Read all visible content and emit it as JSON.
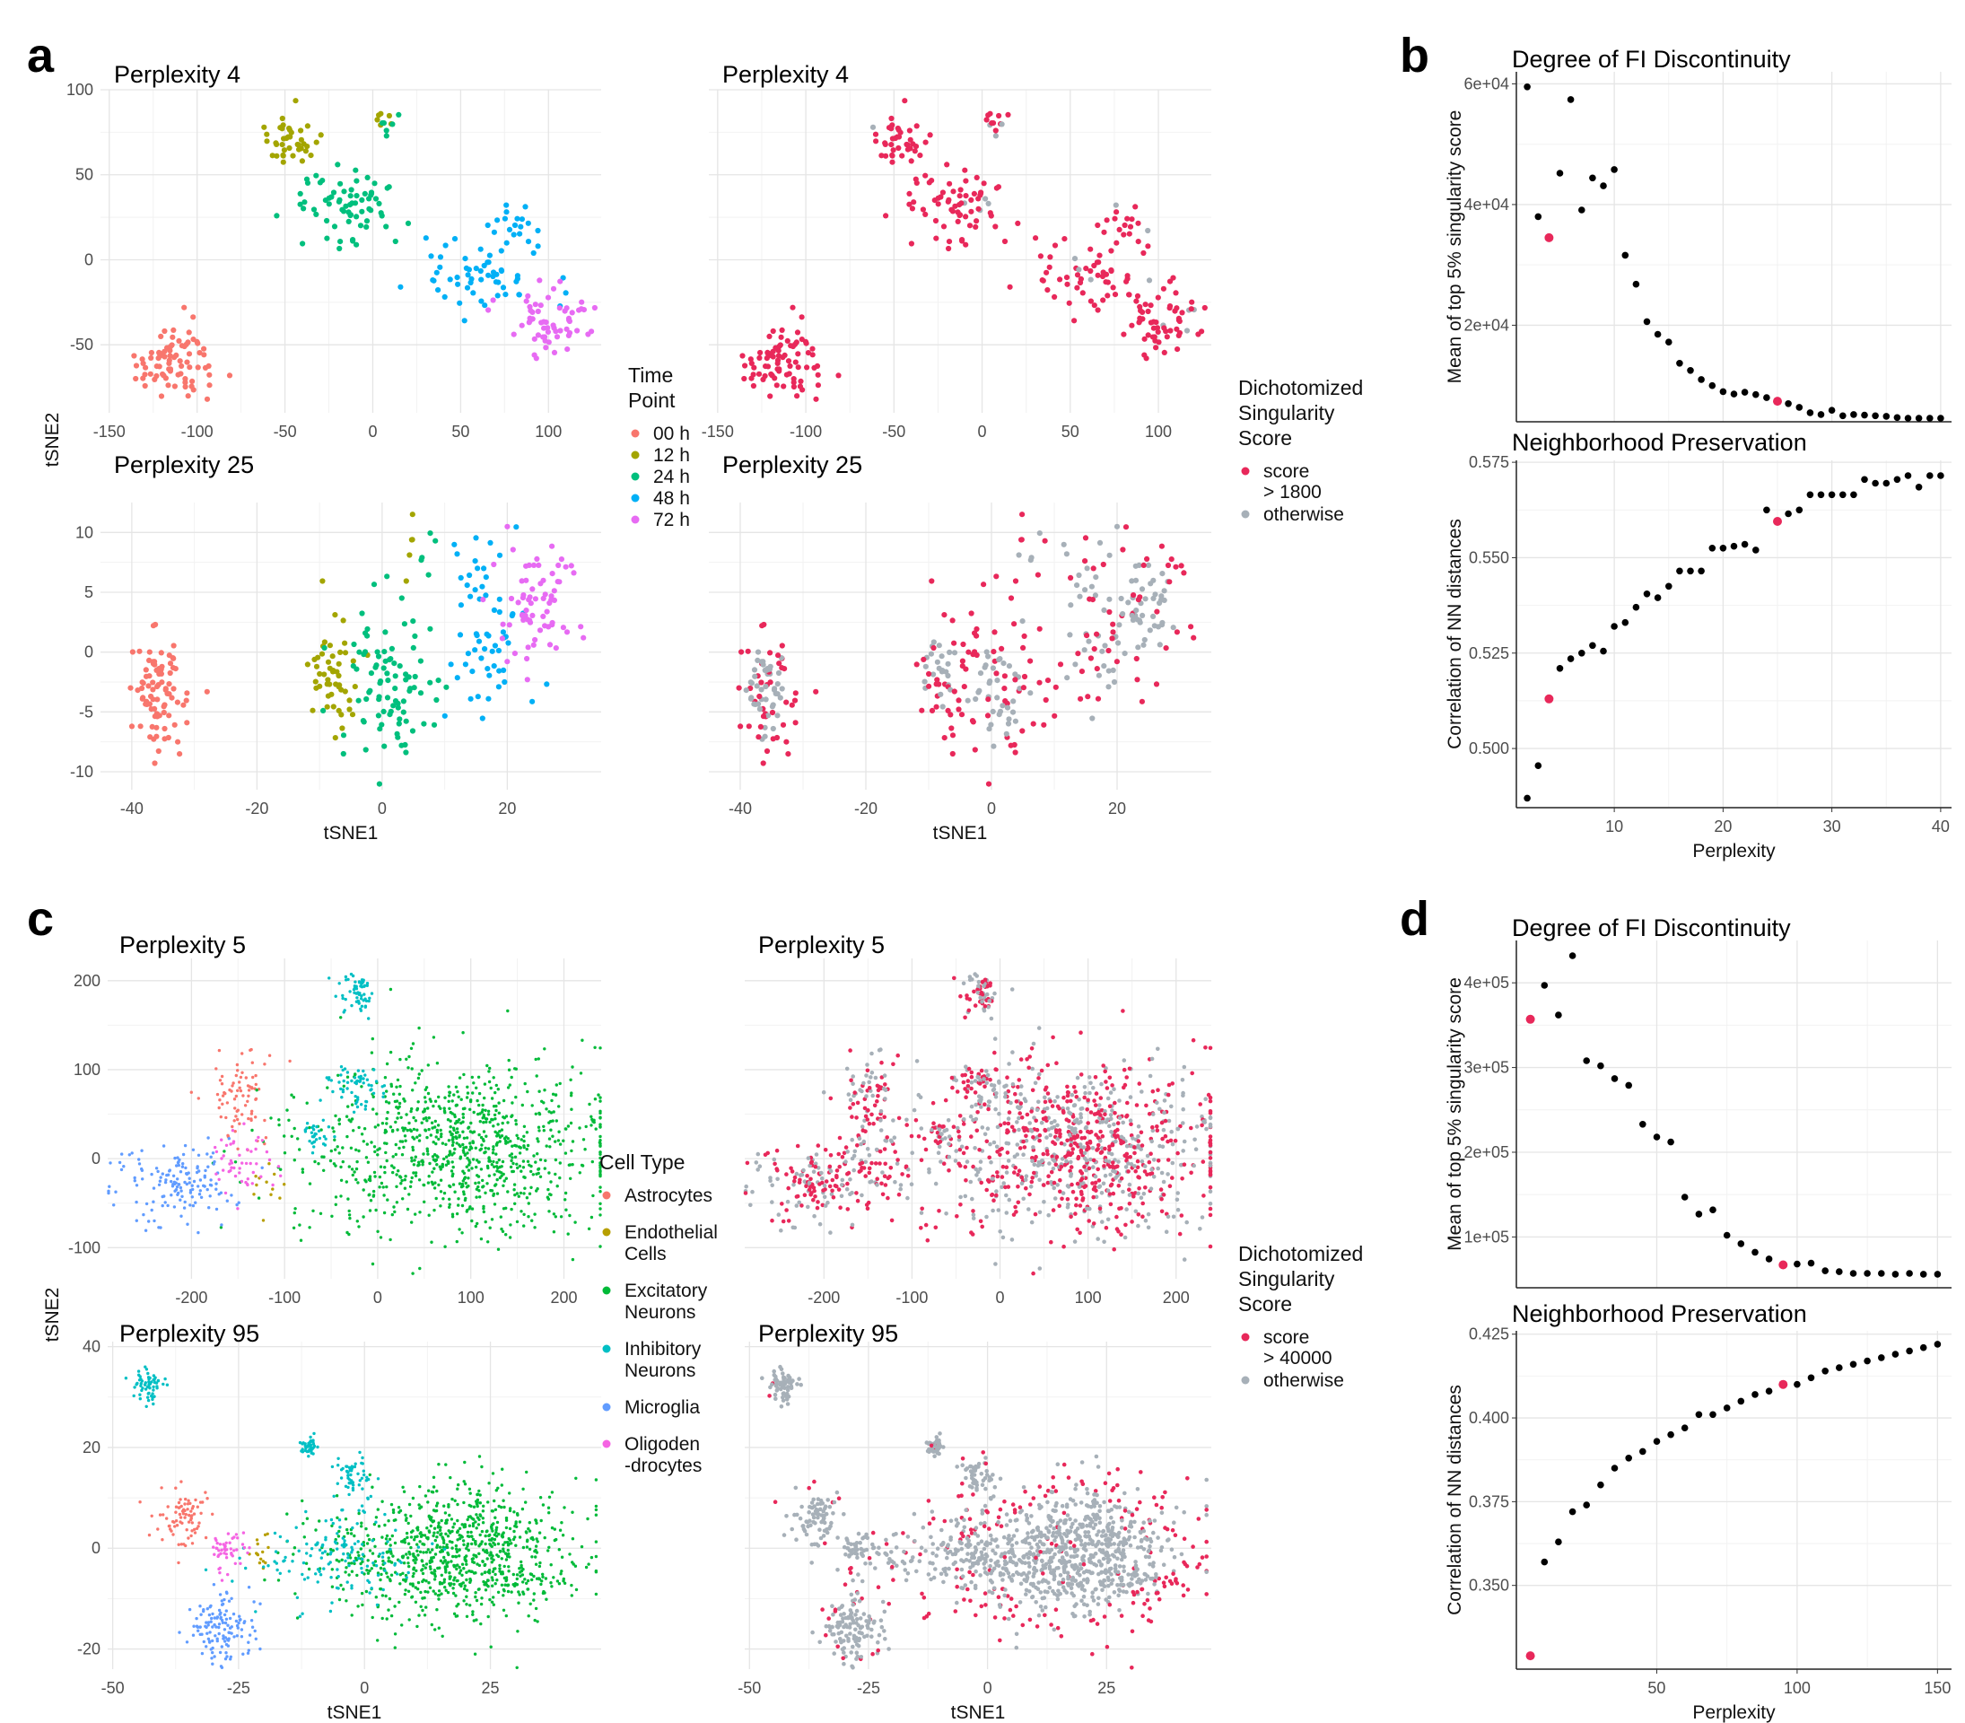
{
  "panel_letters": {
    "a": "a",
    "b": "b",
    "c": "c",
    "d": "d"
  },
  "legends": {
    "time_point": {
      "title": [
        "Time",
        "Point"
      ],
      "items": [
        {
          "label": "00 h",
          "color": "#F8766D"
        },
        {
          "label": "12 h",
          "color": "#A3A500"
        },
        {
          "label": "24 h",
          "color": "#00BF7D"
        },
        {
          "label": "48 h",
          "color": "#00B0F6"
        },
        {
          "label": "72 h",
          "color": "#E76BF3"
        }
      ]
    },
    "dichot_a": {
      "title": [
        "Dichotomized",
        "Singularity",
        "Score"
      ],
      "items": [
        {
          "label": [
            "score",
            "> 1800"
          ],
          "color": "#E8285A"
        },
        {
          "label": [
            "otherwise"
          ],
          "color": "#A7B0B8"
        }
      ]
    },
    "cell_type": {
      "title": [
        "Cell Type"
      ],
      "items": [
        {
          "label": [
            "Astrocytes"
          ],
          "color": "#F8766D"
        },
        {
          "label": [
            "Endothelial",
            "Cells"
          ],
          "color": "#B79F00"
        },
        {
          "label": [
            "Excitatory",
            "Neurons"
          ],
          "color": "#00BA38"
        },
        {
          "label": [
            "Inhibitory",
            "Neurons"
          ],
          "color": "#00BFC4"
        },
        {
          "label": [
            "Microglia"
          ],
          "color": "#619CFF"
        },
        {
          "label": [
            "Oligoden",
            "-drocytes"
          ],
          "color": "#F564E3"
        }
      ]
    },
    "dichot_c": {
      "title": [
        "Dichotomized",
        "Singularity",
        "Score"
      ],
      "items": [
        {
          "label": [
            "score",
            "> 40000"
          ],
          "color": "#E8285A"
        },
        {
          "label": [
            "otherwise"
          ],
          "color": "#A7B0B8"
        }
      ]
    }
  },
  "axis_labels": {
    "tsne1": "tSNE1",
    "tsne2": "tSNE2",
    "perplexity": "Perplexity"
  },
  "chart_data": [
    {
      "id": "a1",
      "type": "scatter",
      "title": "Perplexity 4",
      "color_by": "Time Point",
      "xticks": [
        -150,
        -100,
        -50,
        0,
        50,
        100
      ],
      "yticks": [
        -50,
        0,
        50,
        100
      ],
      "xlim": [
        -155,
        130
      ],
      "ylim": [
        -90,
        100
      ],
      "clusters": [
        {
          "n": 80,
          "cx": -112,
          "cy": -60,
          "sx": 11,
          "sy": 11,
          "color": "#F8766D",
          "flag": 1.0
        },
        {
          "n": 40,
          "cx": -48,
          "cy": 72,
          "sx": 8,
          "sy": 9,
          "color": "#A3A500",
          "flag": 0.95
        },
        {
          "n": 6,
          "cx": 7,
          "cy": 82,
          "sx": 4,
          "sy": 4,
          "color": "#A3A500",
          "flag": 0.6
        },
        {
          "n": 6,
          "cx": 9,
          "cy": 81,
          "sx": 4,
          "sy": 4,
          "color": "#00BF7D",
          "flag": 0.6
        },
        {
          "n": 70,
          "cx": -15,
          "cy": 35,
          "sx": 16,
          "sy": 11,
          "color": "#00BF7D",
          "flag": 0.97
        },
        {
          "n": 60,
          "cx": 65,
          "cy": -8,
          "sx": 17,
          "sy": 12,
          "color": "#00B0F6",
          "flag": 0.95
        },
        {
          "n": 15,
          "cx": 85,
          "cy": 20,
          "sx": 6,
          "sy": 7,
          "color": "#00B0F6",
          "flag": 0.9
        },
        {
          "n": 60,
          "cx": 103,
          "cy": -37,
          "sx": 12,
          "sy": 9,
          "color": "#E76BF3",
          "flag": 0.95
        }
      ]
    },
    {
      "id": "a2",
      "type": "scatter",
      "title": "Perplexity 4",
      "color_by": "Dichotomized Singularity Score",
      "xticks": [
        -150,
        -100,
        -50,
        0,
        50,
        100
      ],
      "yticks": [],
      "xlim": [
        -155,
        130
      ],
      "ylim": [
        -90,
        100
      ]
    },
    {
      "id": "a3",
      "type": "scatter",
      "title": "Perplexity 25",
      "color_by": "Time Point",
      "xticks": [
        -40,
        -20,
        0,
        20
      ],
      "yticks": [
        -10,
        -5,
        0,
        5,
        10
      ],
      "xlim": [
        -45,
        35
      ],
      "ylim": [
        -11.5,
        12.5
      ],
      "clusters": [
        {
          "n": 90,
          "cx": -36,
          "cy": -3,
          "sx": 2.3,
          "sy": 2.6,
          "color": "#F8766D",
          "flag": 0.25
        },
        {
          "n": 50,
          "cx": -8,
          "cy": -2,
          "sx": 2,
          "sy": 2.5,
          "color": "#A3A500",
          "flag": 0.2
        },
        {
          "n": 5,
          "cx": 5.5,
          "cy": 8.5,
          "sx": 1,
          "sy": 1,
          "color": "#A3A500",
          "flag": 0.5
        },
        {
          "n": 5,
          "cx": 7,
          "cy": 9,
          "sx": 1,
          "sy": 1,
          "color": "#00BF7D",
          "flag": 0.5
        },
        {
          "n": 90,
          "cx": 1,
          "cy": -3,
          "sx": 3.5,
          "sy": 3,
          "color": "#00BF7D",
          "flag": 0.3
        },
        {
          "n": 60,
          "cx": 17,
          "cy": 2,
          "sx": 3,
          "sy": 4.5,
          "color": "#00B0F6",
          "flag": 0.35
        },
        {
          "n": 70,
          "cx": 25,
          "cy": 4,
          "sx": 3.5,
          "sy": 3,
          "color": "#E76BF3",
          "flag": 0.2
        }
      ]
    },
    {
      "id": "a4",
      "type": "scatter",
      "title": "Perplexity 25",
      "color_by": "Dichotomized Singularity Score",
      "xticks": [
        -40,
        -20,
        0,
        20
      ],
      "yticks": [],
      "xlim": [
        -45,
        35
      ],
      "ylim": [
        -11.5,
        12.5
      ]
    },
    {
      "id": "b1",
      "type": "scatter",
      "title": "Degree of FI Discontinuity",
      "xlabel": "",
      "ylabel": "Mean of top 5% singularity score",
      "xlim": [
        1,
        41
      ],
      "ylim": [
        4000,
        62000
      ],
      "yticks": [
        20000,
        40000,
        60000
      ],
      "ytick_labels": [
        "2e+04",
        "4e+04",
        "6e+04"
      ],
      "xgrid": [
        10,
        20,
        30,
        40
      ],
      "x": [
        2,
        3,
        4,
        5,
        6,
        7,
        8,
        9,
        10,
        11,
        12,
        13,
        14,
        15,
        16,
        17,
        18,
        19,
        20,
        21,
        22,
        23,
        24,
        25,
        26,
        27,
        28,
        29,
        30,
        31,
        32,
        33,
        34,
        35,
        36,
        37,
        38,
        39,
        40
      ],
      "y": [
        59500,
        38000,
        34500,
        45200,
        57400,
        39100,
        44400,
        43100,
        45800,
        31600,
        26800,
        20600,
        18500,
        17200,
        13700,
        12500,
        11000,
        10000,
        9000,
        8600,
        8900,
        8500,
        8000,
        7400,
        7000,
        6400,
        5500,
        5200,
        5900,
        5000,
        5200,
        5100,
        5000,
        4900,
        4700,
        4600,
        4600,
        4600,
        4600
      ],
      "highlight_x": [
        4,
        25
      ]
    },
    {
      "id": "b2",
      "type": "scatter",
      "title": "Neighborhood Preservation",
      "xlabel": "Perplexity",
      "ylabel": "Correlation of NN distances",
      "xlim": [
        1,
        41
      ],
      "ylim": [
        0.4845,
        0.5755
      ],
      "yticks": [
        0.5,
        0.525,
        0.55,
        0.575
      ],
      "ytick_labels": [
        "0.500",
        "0.525",
        "0.550",
        "0.575"
      ],
      "xticks": [
        10,
        20,
        30,
        40
      ],
      "x": [
        2,
        3,
        4,
        5,
        6,
        7,
        8,
        9,
        10,
        11,
        12,
        13,
        14,
        15,
        16,
        17,
        18,
        19,
        20,
        21,
        22,
        23,
        24,
        25,
        26,
        27,
        28,
        29,
        30,
        31,
        32,
        33,
        34,
        35,
        36,
        37,
        38,
        39,
        40
      ],
      "y": [
        0.487,
        0.4955,
        0.513,
        0.521,
        0.5235,
        0.525,
        0.527,
        0.5255,
        0.532,
        0.533,
        0.537,
        0.5405,
        0.5395,
        0.5425,
        0.5465,
        0.5465,
        0.5465,
        0.5525,
        0.5525,
        0.553,
        0.5535,
        0.552,
        0.5625,
        0.5595,
        0.5615,
        0.5625,
        0.5665,
        0.5665,
        0.5665,
        0.5665,
        0.5665,
        0.5705,
        0.5695,
        0.5695,
        0.5705,
        0.5715,
        0.5685,
        0.5715,
        0.5715
      ],
      "highlight_x": [
        4,
        25
      ]
    },
    {
      "id": "c1",
      "type": "scatter",
      "title": "Perplexity 5",
      "color_by": "Cell Type",
      "xticks": [
        -200,
        -100,
        0,
        100,
        200
      ],
      "yticks": [
        -100,
        0,
        100,
        200
      ],
      "xlim": [
        -290,
        240
      ],
      "ylim": [
        -135,
        225
      ],
      "clusters": [
        {
          "n": 80,
          "cx": -150,
          "cy": 70,
          "sx": 18,
          "sy": 28,
          "color": "#F8766D",
          "flag": 0.6
        },
        {
          "n": 12,
          "cx": -115,
          "cy": -40,
          "sx": 12,
          "sy": 25,
          "color": "#B79F00",
          "flag": 0.7
        },
        {
          "n": 900,
          "cx": 90,
          "cy": 10,
          "sx": 85,
          "sy": 48,
          "color": "#00BA38",
          "flag": 0.5
        },
        {
          "n": 40,
          "cx": 0,
          "cy": 40,
          "sx": 110,
          "sy": 40,
          "color": "#00BA38",
          "flag": 0.5
        },
        {
          "n": 60,
          "cx": -20,
          "cy": 188,
          "sx": 12,
          "sy": 12,
          "color": "#00BFC4",
          "flag": 0.5
        },
        {
          "n": 60,
          "cx": -25,
          "cy": 80,
          "sx": 15,
          "sy": 12,
          "color": "#00BFC4",
          "flag": 0.5
        },
        {
          "n": 30,
          "cx": -65,
          "cy": 25,
          "sx": 8,
          "sy": 8,
          "color": "#00BFC4",
          "flag": 0.5
        },
        {
          "n": 150,
          "cx": -210,
          "cy": -30,
          "sx": 30,
          "sy": 22,
          "color": "#619CFF",
          "flag": 0.5
        },
        {
          "n": 50,
          "cx": -145,
          "cy": -10,
          "sx": 18,
          "sy": 20,
          "color": "#F564E3",
          "flag": 0.5
        }
      ]
    },
    {
      "id": "c2",
      "type": "scatter",
      "title": "Perplexity 5",
      "color_by": "Dichotomized Singularity Score",
      "xticks": [
        -200,
        -100,
        0,
        100,
        200
      ],
      "yticks": [],
      "xlim": [
        -290,
        240
      ],
      "ylim": [
        -135,
        225
      ]
    },
    {
      "id": "c3",
      "type": "scatter",
      "title": "Perplexity 95",
      "color_by": "Cell Type",
      "xticks": [
        -50,
        -25,
        0,
        25
      ],
      "yticks": [
        -20,
        0,
        20,
        40
      ],
      "xlim": [
        -51,
        47
      ],
      "ylim": [
        -24,
        41
      ],
      "clusters": [
        {
          "n": 80,
          "cx": -36,
          "cy": 6,
          "sx": 2.5,
          "sy": 3,
          "color": "#F8766D",
          "flag": 0.06
        },
        {
          "n": 15,
          "cx": -21,
          "cy": -1,
          "sx": 1.3,
          "sy": 2,
          "color": "#B79F00",
          "flag": 0.05
        },
        {
          "n": 900,
          "cx": 18,
          "cy": -1,
          "sx": 12,
          "sy": 6.5,
          "color": "#00BA38",
          "flag": 0.12
        },
        {
          "n": 140,
          "cx": -5,
          "cy": -1,
          "sx": 9,
          "sy": 4.5,
          "color": "#00BFC4",
          "flag": 0.05
        },
        {
          "n": 60,
          "cx": -43,
          "cy": 32,
          "sx": 1.6,
          "sy": 1.6,
          "color": "#00BFC4",
          "flag": 0.05
        },
        {
          "n": 40,
          "cx": -11,
          "cy": 20,
          "sx": 1,
          "sy": 1.2,
          "color": "#00BFC4",
          "flag": 0.05
        },
        {
          "n": 50,
          "cx": -2,
          "cy": 14,
          "sx": 2,
          "sy": 2,
          "color": "#00BFC4",
          "flag": 0.08
        },
        {
          "n": 130,
          "cx": -28,
          "cy": -16,
          "sx": 3,
          "sy": 3.2,
          "color": "#619CFF",
          "flag": 0.05
        },
        {
          "n": 50,
          "cx": -27,
          "cy": 0,
          "sx": 2.2,
          "sy": 2,
          "color": "#F564E3",
          "flag": 0.05
        }
      ]
    },
    {
      "id": "c4",
      "type": "scatter",
      "title": "Perplexity 95",
      "color_by": "Dichotomized Singularity Score",
      "xticks": [
        -50,
        -25,
        0,
        25
      ],
      "yticks": [],
      "xlim": [
        -51,
        47
      ],
      "ylim": [
        -24,
        41
      ]
    },
    {
      "id": "d1",
      "type": "scatter",
      "title": "Degree of FI Discontinuity",
      "xlabel": "",
      "ylabel": "Mean of top 5% singularity score",
      "xlim": [
        0,
        155
      ],
      "ylim": [
        40000,
        450000
      ],
      "yticks": [
        100000,
        200000,
        300000,
        400000
      ],
      "ytick_labels": [
        "1e+05",
        "2e+05",
        "3e+05",
        "4e+05"
      ],
      "xgrid": [
        50,
        100,
        150
      ],
      "x": [
        5,
        10,
        15,
        20,
        25,
        30,
        35,
        40,
        45,
        50,
        55,
        60,
        65,
        70,
        75,
        80,
        85,
        90,
        95,
        100,
        105,
        110,
        115,
        120,
        125,
        130,
        135,
        140,
        145,
        150
      ],
      "y": [
        357000,
        397000,
        362000,
        432000,
        308000,
        302000,
        287000,
        279000,
        233000,
        218000,
        212000,
        147000,
        127000,
        132000,
        102000,
        92000,
        82000,
        74000,
        67000,
        68000,
        69000,
        60000,
        59000,
        57000,
        57000,
        57000,
        56000,
        57000,
        56000,
        56000
      ],
      "highlight_x": [
        5,
        95
      ]
    },
    {
      "id": "d2",
      "type": "scatter",
      "title": "Neighborhood Preservation",
      "xlabel": "Perplexity",
      "ylabel": "Correlation of NN distances",
      "xlim": [
        0,
        155
      ],
      "ylim": [
        0.325,
        0.426
      ],
      "yticks": [
        0.35,
        0.375,
        0.4,
        0.425
      ],
      "ytick_labels": [
        "0.350",
        "0.375",
        "0.400",
        "0.425"
      ],
      "xticks": [
        50,
        100,
        150
      ],
      "x": [
        5,
        10,
        15,
        20,
        25,
        30,
        35,
        40,
        45,
        50,
        55,
        60,
        65,
        70,
        75,
        80,
        85,
        90,
        95,
        100,
        105,
        110,
        115,
        120,
        125,
        130,
        135,
        140,
        145,
        150
      ],
      "y": [
        0.329,
        0.357,
        0.363,
        0.372,
        0.374,
        0.38,
        0.385,
        0.388,
        0.39,
        0.393,
        0.395,
        0.397,
        0.401,
        0.401,
        0.403,
        0.405,
        0.407,
        0.408,
        0.41,
        0.41,
        0.412,
        0.414,
        0.415,
        0.416,
        0.417,
        0.418,
        0.419,
        0.42,
        0.421,
        0.422
      ],
      "highlight_x": [
        5,
        95
      ]
    }
  ]
}
